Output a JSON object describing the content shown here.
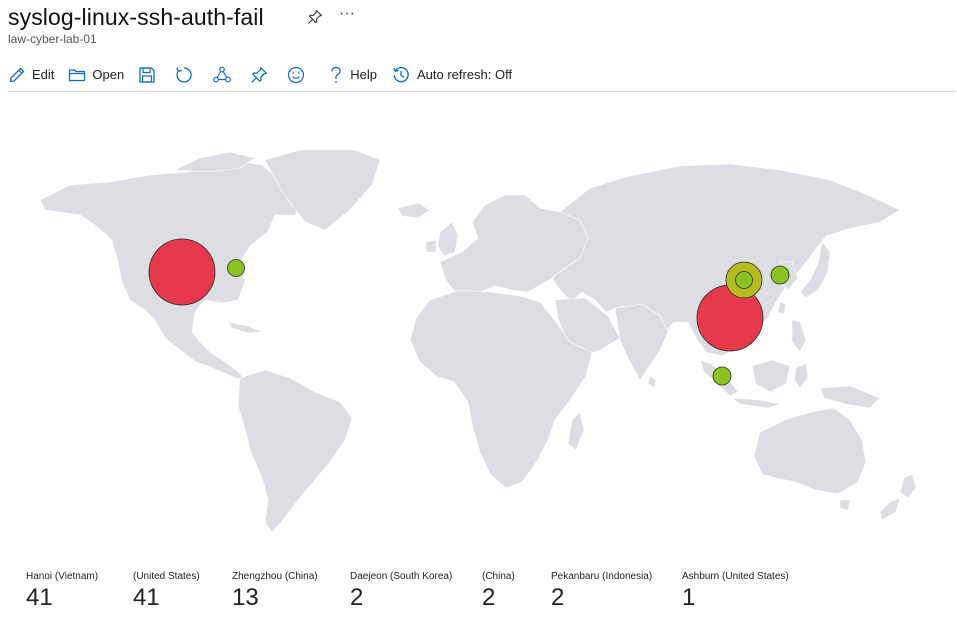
{
  "header": {
    "title": "syslog-linux-ssh-auth-fail",
    "subtitle": "law-cyber-lab-01",
    "more_label": "···"
  },
  "toolbar": {
    "edit_label": "Edit",
    "open_label": "Open",
    "help_label": "Help",
    "auto_refresh_label": "Auto refresh: Off"
  },
  "colors": {
    "land": "#dcdee3",
    "high": "#e8394c",
    "medium": "#b5bd1e",
    "low": "#8cc21f",
    "accent": "#0f6cbd"
  },
  "locations": [
    {
      "label": "Hanoi (Vietnam)",
      "value": "41"
    },
    {
      "label": "(United States)",
      "value": "41"
    },
    {
      "label": "Zhengzhou (China)",
      "value": "13"
    },
    {
      "label": "Daejeon (South Korea)",
      "value": "2"
    },
    {
      "label": "(China)",
      "value": "2"
    },
    {
      "label": "Pekanbaru (Indonesia)",
      "value": "2"
    },
    {
      "label": "Ashburn (United States)",
      "value": "1"
    }
  ]
}
